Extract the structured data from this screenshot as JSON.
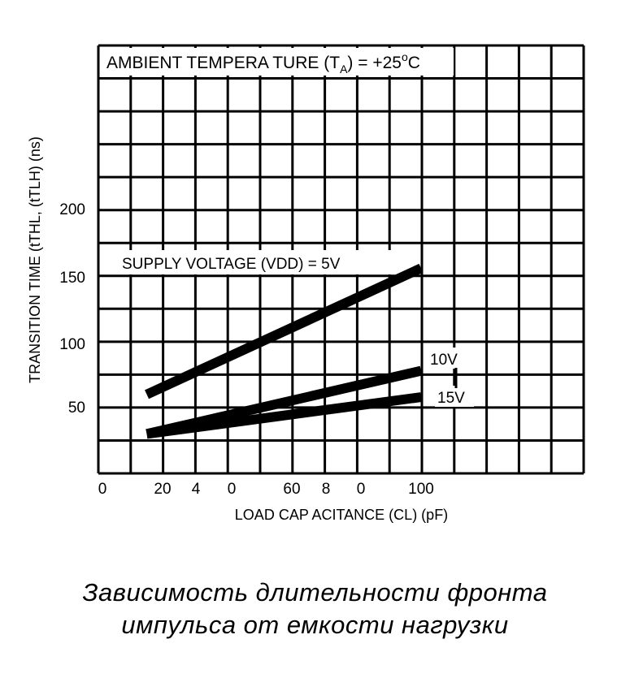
{
  "chart_data": {
    "type": "line",
    "annotation": "AMBIENT TEMPERA TURE (T",
    "annotation_sub": "A",
    "annotation_end": ") = +25",
    "annotation_deg": "o",
    "annotation_unit": "C",
    "ylabel": "TRANSITION TIME (tTHL, (tTLH) (ns)",
    "xlabel": "LOAD CAP ACITANCE (CL) (pF)",
    "y_ticks": [
      "200",
      "150",
      "100",
      "50"
    ],
    "x_ticks": [
      "0",
      "20",
      "4",
      "0",
      "60",
      "8",
      "0",
      "100"
    ],
    "xlim": [
      0,
      100
    ],
    "grid": true,
    "series": [
      {
        "name": "SUPPLY VOLTAGE (VDD) = 5V",
        "x": [
          15,
          100
        ],
        "y": [
          60,
          156
        ]
      },
      {
        "name": "10V",
        "x": [
          15,
          100
        ],
        "y": [
          30,
          78
        ]
      },
      {
        "name": "15V",
        "x": [
          15,
          100
        ],
        "y": [
          30,
          58
        ]
      }
    ]
  },
  "caption": {
    "line1": "Зависимость длительности фронта",
    "line2": "импульса от емкости нагрузки"
  }
}
